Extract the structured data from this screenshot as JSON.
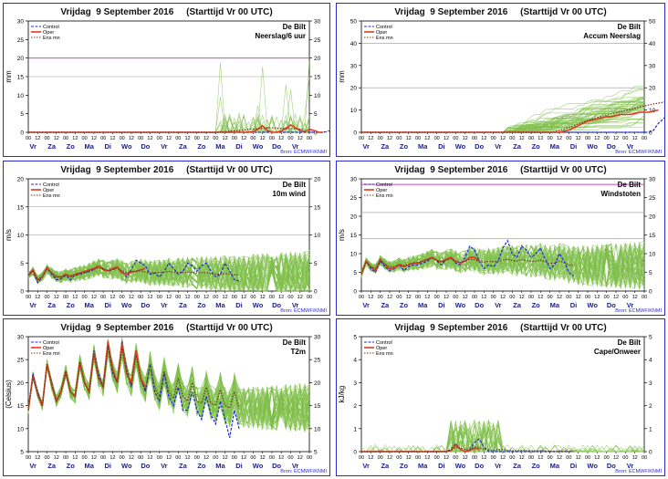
{
  "header_title": "Vrijdag  9 September 2016     (Starttijd Vr 00 UTC)",
  "source_label": "Bron: ECMWF/KNMI",
  "location": "De Bilt",
  "legend_labels": [
    "Control",
    "Oper",
    "Ens mn"
  ],
  "colors": {
    "frame": "#2b2bd0",
    "control": "#1f2bd6",
    "oper": "#e03b1e",
    "ens_mean": "#6b3a22",
    "members": "#7fbf4a",
    "threshold": "#cc44cc",
    "day_label": "#1a1a9a",
    "source": "#2b2bd0"
  },
  "x_axis": {
    "hours": [
      "00",
      "12",
      "00",
      "12",
      "00",
      "12",
      "00",
      "12",
      "00",
      "12",
      "00",
      "12",
      "00",
      "12",
      "00",
      "12",
      "00",
      "12",
      "00",
      "12",
      "00",
      "12",
      "00",
      "12",
      "00",
      "12",
      "00",
      "12",
      "00",
      "12",
      "00"
    ],
    "days": [
      "Vr",
      "Za",
      "Zo",
      "Ma",
      "Di",
      "Wo",
      "Do",
      "Vr",
      "Za",
      "Zo",
      "Ma",
      "Di",
      "Wo",
      "Do",
      "Vr"
    ]
  },
  "chart_data": [
    {
      "type": "line",
      "id": "neerslag",
      "subtitle": "Neerslag/6 uur",
      "ylabel": "mm",
      "ylim": [
        0,
        30
      ],
      "yticks": [
        0,
        5,
        10,
        15,
        20,
        25,
        30
      ],
      "threshold": 20,
      "grid": [
        15
      ],
      "series": [
        {
          "name": "Control",
          "values": [
            0,
            0,
            0,
            0,
            0,
            0,
            0,
            0,
            0,
            0,
            0,
            0,
            0,
            0,
            0,
            0,
            0,
            0,
            0,
            0,
            0,
            0,
            0,
            0,
            0,
            0,
            0,
            0,
            0,
            0,
            0,
            0,
            0,
            0,
            0,
            0,
            0,
            0,
            0,
            0,
            0,
            0,
            0,
            0,
            0,
            0,
            0,
            0,
            0,
            0,
            0,
            0,
            0,
            0,
            0,
            0,
            0,
            0,
            0,
            0,
            0,
            0,
            0,
            0,
            0.3,
            0.5,
            0.8,
            2.5,
            3.0,
            2.0,
            0.5,
            0,
            0,
            0,
            0,
            0,
            0,
            0,
            0,
            0,
            1.0,
            3.0,
            5.5,
            6.8,
            2.0,
            0,
            0,
            0,
            0,
            0,
            0,
            0,
            0,
            0,
            0,
            0,
            0,
            0,
            0,
            0,
            0,
            0,
            0,
            0,
            0,
            0,
            0,
            0,
            0,
            0,
            0,
            0,
            0,
            0,
            0,
            0,
            0,
            0,
            0,
            0,
            0
          ]
        },
        {
          "name": "Oper",
          "values": [
            0,
            0,
            0,
            0,
            0,
            0,
            0,
            0,
            0,
            0,
            0,
            0,
            0,
            0,
            0,
            0,
            0,
            0,
            0,
            0,
            0,
            0,
            0,
            0,
            0,
            0,
            0,
            0,
            0,
            0,
            0,
            0,
            0,
            0,
            0,
            0,
            0,
            0,
            0,
            0,
            0,
            0,
            0,
            0,
            0,
            0,
            0,
            0,
            0.2,
            0.8,
            1.8,
            0.5,
            0,
            0,
            0.3,
            1.0,
            2.0,
            1.2,
            0.5,
            0.2,
            0.8,
            0.5,
            0,
            0
          ]
        },
        {
          "name": "Ens mn",
          "values": [
            0,
            0,
            0,
            0,
            0,
            0,
            0,
            0,
            0,
            0,
            0,
            0,
            0,
            0,
            0,
            0,
            0,
            0,
            0,
            0,
            0,
            0,
            0,
            0,
            0,
            0,
            0,
            0,
            0,
            0,
            0,
            0,
            0,
            0,
            0,
            0,
            0,
            0,
            0,
            0,
            0,
            0.1,
            0.2,
            0.3,
            0.4,
            0.5,
            0.6,
            0.8,
            0.9,
            1.0,
            1.1,
            1.2,
            1.2,
            1.1,
            1.0,
            1.0,
            1.0,
            0.9,
            0.8,
            0.8
          ]
        }
      ]
    },
    {
      "type": "line",
      "id": "accum",
      "subtitle": "Accum Neerslag",
      "ylabel": "mm",
      "ylim": [
        0,
        50
      ],
      "yticks": [
        0,
        10,
        20,
        30,
        40,
        50
      ],
      "grid": [
        20,
        40
      ],
      "series": [
        {
          "name": "Control",
          "values": [
            0,
            0,
            0,
            0,
            0,
            0,
            0,
            0,
            0,
            0,
            0,
            0,
            0,
            0,
            0,
            0,
            0,
            0,
            0,
            0,
            0,
            0,
            0,
            0,
            0,
            0,
            0,
            0,
            0,
            0,
            0,
            0,
            0,
            0,
            0,
            0,
            0,
            0,
            0,
            0,
            0,
            0,
            0,
            0,
            0,
            0,
            0,
            0,
            0,
            0,
            0,
            0,
            0,
            0,
            0,
            0,
            0,
            0,
            0,
            0,
            0,
            0,
            1,
            4,
            6,
            8,
            9,
            10,
            10.5,
            11,
            11.5,
            12,
            12,
            13,
            15,
            18,
            20,
            20.5,
            21,
            21,
            21.5,
            22,
            22,
            22.5,
            23,
            23,
            23.5,
            24
          ]
        },
        {
          "name": "Oper",
          "values": [
            0,
            0,
            0,
            0,
            0,
            0,
            0,
            0,
            0,
            0,
            0,
            0,
            0,
            0,
            0,
            0,
            0,
            0,
            0,
            0,
            0,
            0,
            0,
            0,
            0,
            0,
            0,
            0,
            0,
            0,
            0,
            0,
            0,
            0,
            0,
            0,
            0,
            0,
            0,
            0,
            0,
            0,
            0,
            0.5,
            1,
            2,
            3,
            4,
            5,
            5.5,
            6,
            6.5,
            7,
            7,
            7.5,
            8,
            8,
            8,
            8.5,
            9,
            9,
            9,
            9.5,
            10
          ]
        },
        {
          "name": "Ens mn",
          "values": [
            0,
            0,
            0,
            0,
            0,
            0,
            0,
            0,
            0,
            0,
            0,
            0,
            0,
            0,
            0,
            0,
            0,
            0,
            0,
            0,
            0,
            0,
            0,
            0,
            0,
            0,
            0,
            0,
            0,
            0,
            0,
            0,
            0,
            0,
            0,
            0,
            0,
            0,
            0,
            0,
            0,
            0.3,
            0.8,
            1.5,
            2.2,
            3,
            3.8,
            4.5,
            5.2,
            6,
            6.6,
            7.2,
            7.8,
            8.3,
            8.8,
            9.3,
            9.8,
            10.3,
            10.8,
            11.3,
            11.8,
            12.3,
            12.7,
            13.1,
            13.5,
            14,
            14.4,
            14.8,
            15.2,
            15.6,
            16,
            16.3,
            16.6,
            16.9,
            17.2,
            17.5,
            17.8,
            18.1,
            18.4
          ]
        }
      ]
    },
    {
      "type": "line",
      "id": "wind10",
      "subtitle": "10m wind",
      "ylabel": "m/s",
      "ylim": [
        0,
        20
      ],
      "yticks": [
        0,
        5,
        10,
        15,
        20
      ],
      "grid": [
        10,
        15
      ],
      "series": [
        {
          "name": "Control",
          "values": [
            2.8,
            3.5,
            1.5,
            2.5,
            4,
            3,
            2,
            2.2,
            2.8,
            2,
            2.8,
            3,
            3.2,
            3.5,
            3.8,
            4.5,
            4,
            3.5,
            3.8,
            4.2,
            3.5,
            2.5,
            3.8,
            5.5,
            5,
            4.5,
            3,
            3.2,
            2.5,
            3.5,
            5,
            4,
            3,
            3.5,
            5,
            4.5,
            3.5,
            4.5,
            5,
            3.5,
            2.5,
            3,
            5,
            3.5,
            2,
            1.8
          ]
        },
        {
          "name": "Oper",
          "values": [
            2.8,
            3.8,
            2,
            2.5,
            4.2,
            3.2,
            2.5,
            2.5,
            3,
            2.5,
            3,
            3.2,
            3.5,
            3.8,
            4,
            4.5,
            3.8,
            3.6,
            4,
            4.3,
            3.2,
            3,
            3.4,
            3.5,
            3.8,
            4
          ]
        },
        {
          "name": "Ens mn",
          "values": [
            2.8,
            3.6,
            2,
            2.7,
            3.9,
            3.2,
            2.6,
            2.5,
            2.9,
            2.7,
            3,
            3.2,
            3.3,
            3.6,
            3.9,
            4.2,
            3.9,
            3.7,
            3.8,
            4,
            3.6,
            3.3,
            3.4,
            3.6,
            3.6,
            3.4,
            3.2,
            3.3,
            3.3,
            3.4,
            3.5,
            3.4,
            3.3,
            3.3,
            3.4,
            3.3,
            3.2,
            3.3,
            3.3,
            3.1,
            3,
            3,
            3.1,
            3,
            2.9,
            2.9
          ]
        }
      ]
    },
    {
      "type": "line",
      "id": "windstoten",
      "subtitle": "Windstoten",
      "ylabel": "m/s",
      "ylim": [
        0,
        30
      ],
      "yticks": [
        0,
        5,
        10,
        15,
        20,
        25,
        30
      ],
      "threshold": 28.5,
      "grid": [
        14,
        21
      ],
      "series": [
        {
          "name": "Control",
          "values": [
            4.5,
            8,
            6,
            5,
            8,
            6.5,
            5.5,
            6,
            7,
            5.5,
            6.5,
            7,
            7,
            7.5,
            8,
            9,
            8,
            7,
            8.5,
            9,
            7.5,
            7,
            9,
            12,
            11,
            8,
            6,
            7,
            6.5,
            8,
            11.5,
            13.5,
            10,
            9,
            12,
            11,
            9,
            10,
            11.5,
            8.5,
            6,
            7,
            10,
            8,
            5,
            4
          ]
        },
        {
          "name": "Oper",
          "values": [
            4.5,
            8,
            6.5,
            5.5,
            8.5,
            7,
            6,
            6.2,
            7,
            6.5,
            7,
            7.5,
            7.5,
            8,
            8.5,
            9,
            8.2,
            7.8,
            8.5,
            9,
            8,
            7.5,
            8,
            9,
            9,
            8
          ]
        },
        {
          "name": "Ens mn",
          "values": [
            4.5,
            7.8,
            6.5,
            6,
            8.2,
            7.2,
            6.5,
            6.5,
            7.2,
            6.8,
            7.2,
            7.5,
            7.6,
            8,
            8.4,
            8.8,
            8.2,
            7.8,
            8.3,
            8.6,
            8,
            7.6,
            8,
            8.5,
            8.4,
            8,
            7.7,
            8,
            7.8,
            8,
            8.3,
            8.5,
            8.2,
            8,
            8.4,
            8.2,
            7.9,
            8,
            8.3,
            7.8,
            7.4,
            7.5,
            8,
            7.6,
            7,
            6.8
          ]
        }
      ]
    },
    {
      "type": "line",
      "id": "t2m",
      "subtitle": "T2m",
      "ylabel": "(Celsius)",
      "ylim": [
        5,
        30
      ],
      "yticks": [
        5,
        10,
        15,
        20,
        25,
        30
      ],
      "series": [
        {
          "name": "Control",
          "values": [
            14,
            22,
            18,
            15,
            24,
            20,
            16,
            18,
            22,
            18,
            17,
            24,
            20,
            18,
            27,
            22,
            19,
            28,
            22,
            20,
            29,
            23,
            19,
            27,
            21,
            18,
            24,
            18,
            16,
            22,
            17,
            15,
            19,
            14,
            14,
            18,
            14,
            12,
            17,
            13,
            11,
            16,
            12,
            8,
            14,
            10
          ]
        },
        {
          "name": "Oper",
          "values": [
            14,
            21.5,
            17.5,
            15,
            24,
            19.5,
            16,
            18,
            22.5,
            18,
            17,
            24.5,
            20,
            18,
            26.5,
            21,
            19,
            29,
            23,
            20,
            28.5,
            22,
            20,
            27,
            21,
            19
          ]
        },
        {
          "name": "Ens mn",
          "values": [
            14,
            21.5,
            17.5,
            15,
            24,
            19.5,
            16,
            18,
            22.5,
            18,
            17,
            24.5,
            20,
            18,
            26.5,
            21,
            19,
            28,
            22.5,
            20,
            27.5,
            22,
            19.5,
            26,
            20.5,
            18.5,
            24,
            19,
            17,
            22.5,
            18,
            16.5,
            21,
            17,
            16,
            20,
            16,
            15.5,
            19,
            15.5,
            15,
            18.5,
            15,
            14.5,
            18,
            14.5
          ]
        }
      ]
    },
    {
      "type": "line",
      "id": "cape",
      "subtitle": "Cape/Onweer",
      "ylabel": "kJ/kg",
      "ylim": [
        0,
        5
      ],
      "yticks": [
        0,
        1,
        2,
        3,
        4,
        5
      ],
      "series": [
        {
          "name": "Control",
          "values": [
            0,
            0,
            0,
            0,
            0,
            0,
            0,
            0,
            0,
            0,
            0,
            0,
            0,
            0,
            0,
            0,
            0,
            0,
            0,
            0.1,
            0.35,
            0.1,
            0,
            0.1,
            0.4,
            0.55,
            0.2,
            0,
            0,
            0,
            0,
            0,
            0,
            0,
            0,
            0,
            0,
            0,
            0,
            0,
            0,
            0,
            0,
            0,
            0,
            0
          ]
        },
        {
          "name": "Oper",
          "values": [
            0,
            0,
            0,
            0,
            0,
            0,
            0,
            0,
            0,
            0,
            0,
            0,
            0,
            0,
            0,
            0,
            0,
            0,
            0,
            0.05,
            0.3,
            0.1,
            0,
            0.05,
            0.15,
            0.1
          ]
        },
        {
          "name": "Ens mn",
          "values": [
            0,
            0,
            0,
            0,
            0,
            0,
            0,
            0,
            0,
            0,
            0,
            0,
            0,
            0,
            0,
            0,
            0,
            0,
            0,
            0.05,
            0.2,
            0.15,
            0.1,
            0.12,
            0.2,
            0.18,
            0.1,
            0.08,
            0.06,
            0.08,
            0.1,
            0.06,
            0.04,
            0.04,
            0.05,
            0.04,
            0.03,
            0.03,
            0.04,
            0.03,
            0.02,
            0.02,
            0.02,
            0.02,
            0.01,
            0.01
          ]
        }
      ]
    }
  ]
}
